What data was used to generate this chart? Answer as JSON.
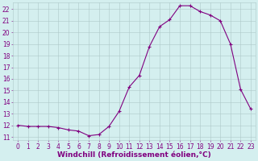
{
  "x": [
    0,
    1,
    2,
    3,
    4,
    5,
    6,
    7,
    8,
    9,
    10,
    11,
    12,
    13,
    14,
    15,
    16,
    17,
    18,
    19,
    20,
    21,
    22,
    23
  ],
  "y": [
    12.0,
    11.9,
    11.9,
    11.9,
    11.8,
    11.6,
    11.5,
    11.1,
    11.2,
    11.9,
    13.2,
    15.3,
    16.3,
    18.8,
    20.5,
    21.1,
    22.3,
    22.3,
    21.8,
    21.5,
    21.0,
    19.0,
    15.1,
    13.4
  ],
  "line_color": "#800080",
  "marker": "+",
  "marker_size": 3,
  "bg_color": "#d4efef",
  "grid_color": "#aec8c8",
  "xlabel": "Windchill (Refroidissement éolien,°C)",
  "xlim_min": -0.5,
  "xlim_max": 23.5,
  "ylim_min": 10.7,
  "ylim_max": 22.6,
  "yticks": [
    11,
    12,
    13,
    14,
    15,
    16,
    17,
    18,
    19,
    20,
    21,
    22
  ],
  "xticks": [
    0,
    1,
    2,
    3,
    4,
    5,
    6,
    7,
    8,
    9,
    10,
    11,
    12,
    13,
    14,
    15,
    16,
    17,
    18,
    19,
    20,
    21,
    22,
    23
  ],
  "tick_color": "#800080",
  "label_color": "#800080",
  "font_size_label": 6.5,
  "font_size_tick": 5.5,
  "line_width": 0.8,
  "marker_edge_width": 0.8
}
